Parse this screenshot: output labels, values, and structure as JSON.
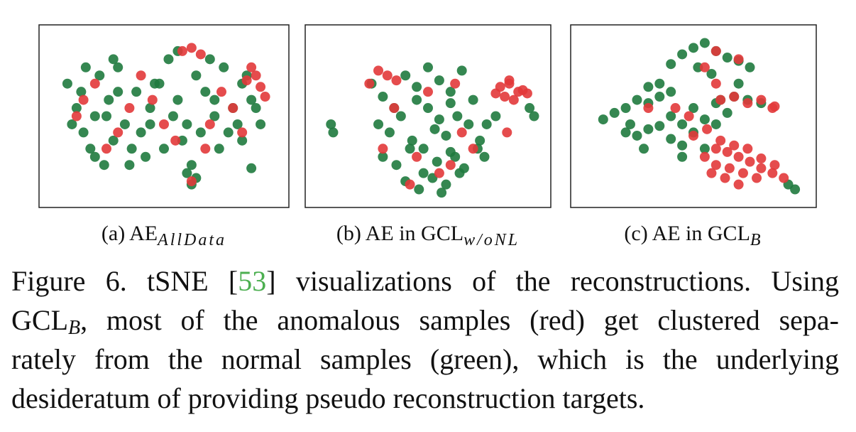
{
  "chart_data": [
    {
      "type": "scatter",
      "title": "(a) AE",
      "title_subscript": "AllData",
      "xlim": [
        0,
        100
      ],
      "ylim": [
        0,
        100
      ],
      "series": [
        {
          "color": "#1f7a3e",
          "x": [
            8,
            12,
            15,
            18,
            22,
            25,
            28,
            10,
            14,
            20,
            26,
            30,
            33,
            36,
            40,
            44,
            48,
            52,
            56,
            60,
            64,
            68,
            72,
            76,
            80,
            84,
            88,
            92,
            35,
            42,
            50,
            58,
            66,
            74,
            82,
            90,
            38,
            46,
            54,
            62,
            70,
            78,
            86,
            20,
            24,
            30,
            60,
            62,
            64,
            88,
            16,
            28,
            44,
            56,
            72,
            84
          ],
          "y": [
            70,
            55,
            40,
            30,
            75,
            50,
            35,
            45,
            65,
            25,
            60,
            80,
            45,
            30,
            40,
            55,
            70,
            85,
            60,
            45,
            75,
            65,
            50,
            80,
            55,
            70,
            60,
            45,
            20,
            25,
            30,
            35,
            40,
            30,
            45,
            55,
            65,
            70,
            50,
            20,
            85,
            40,
            75,
            50,
            20,
            65,
            15,
            8,
            12,
            18,
            80,
            85,
            45,
            90,
            60,
            35
          ]
        },
        {
          "color": "#e2383a",
          "x": [
            90,
            92,
            88,
            94,
            86,
            58,
            62,
            66,
            12,
            20,
            30,
            45,
            55,
            70,
            80,
            25,
            40,
            62,
            75,
            35,
            50,
            15,
            68,
            84
          ],
          "y": [
            75,
            68,
            80,
            62,
            72,
            90,
            92,
            88,
            50,
            70,
            40,
            60,
            35,
            45,
            55,
            30,
            75,
            10,
            65,
            55,
            45,
            60,
            30,
            40
          ]
        }
      ]
    },
    {
      "type": "scatter",
      "title": "(b) AE in GCL",
      "title_subscript": "w/oNL",
      "xlim": [
        0,
        100
      ],
      "ylim": [
        0,
        100
      ],
      "series": [
        {
          "color": "#1f7a3e",
          "x": [
            7,
            8,
            25,
            30,
            35,
            40,
            45,
            50,
            55,
            60,
            65,
            70,
            28,
            33,
            38,
            43,
            48,
            53,
            58,
            63,
            68,
            73,
            30,
            36,
            42,
            48,
            54,
            60,
            66,
            72,
            40,
            46,
            52,
            58,
            64,
            45,
            50,
            55,
            60,
            56,
            62,
            75,
            95,
            97,
            76,
            80
          ],
          "y": [
            45,
            40,
            70,
            62,
            55,
            75,
            68,
            80,
            72,
            65,
            78,
            60,
            45,
            40,
            50,
            35,
            30,
            42,
            38,
            50,
            45,
            35,
            25,
            20,
            30,
            15,
            22,
            28,
            18,
            30,
            10,
            5,
            12,
            8,
            15,
            60,
            55,
            48,
            58,
            3,
            25,
            25,
            55,
            50,
            45,
            50
          ]
        },
        {
          "color": "#e2383a",
          "x": [
            82,
            86,
            90,
            94,
            84,
            88,
            92,
            80,
            86,
            28,
            32,
            36,
            24,
            30,
            45,
            55,
            65,
            35,
            60,
            50,
            70,
            42,
            62,
            85
          ],
          "y": [
            68,
            70,
            65,
            64,
            62,
            60,
            66,
            64,
            72,
            78,
            75,
            72,
            70,
            30,
            25,
            15,
            40,
            55,
            20,
            65,
            30,
            8,
            70,
            40
          ]
        }
      ]
    },
    {
      "type": "scatter",
      "title": "(c) AE in GCL",
      "title_subscript": "B",
      "xlim": [
        0,
        100
      ],
      "ylim": [
        0,
        100
      ],
      "series": [
        {
          "color": "#1f7a3e",
          "x": [
            40,
            45,
            50,
            55,
            60,
            65,
            70,
            75,
            52,
            58,
            10,
            15,
            20,
            25,
            30,
            35,
            40,
            45,
            50,
            55,
            60,
            65,
            20,
            25,
            30,
            35,
            40,
            45,
            50,
            55,
            60,
            68,
            74,
            80,
            30,
            35,
            40,
            45,
            92,
            95,
            22,
            28,
            62,
            70
          ],
          "y": [
            82,
            88,
            92,
            95,
            90,
            86,
            84,
            80,
            80,
            76,
            48,
            52,
            55,
            60,
            58,
            62,
            50,
            45,
            55,
            48,
            58,
            52,
            40,
            38,
            42,
            44,
            36,
            32,
            40,
            30,
            45,
            62,
            60,
            58,
            68,
            70,
            65,
            25,
            8,
            5,
            45,
            30,
            60,
            70
          ]
        },
        {
          "color": "#e2383a",
          "x": [
            60,
            65,
            70,
            75,
            80,
            85,
            90,
            62,
            68,
            74,
            80,
            86,
            55,
            60,
            66,
            72,
            78,
            58,
            64,
            70,
            50,
            56,
            62,
            68,
            74,
            80,
            86,
            55,
            70,
            42,
            48,
            60,
            30,
            85,
            60
          ],
          "y": [
            30,
            28,
            25,
            22,
            18,
            15,
            12,
            35,
            32,
            30,
            24,
            20,
            25,
            20,
            18,
            15,
            12,
            15,
            12,
            8,
            38,
            42,
            60,
            62,
            58,
            60,
            56,
            80,
            85,
            55,
            50,
            90,
            55,
            55,
            70
          ]
        }
      ]
    }
  ],
  "figure_caption": {
    "lines": [
      [
        {
          "text": "Figure 6.  tSNE ["
        },
        {
          "text": "53",
          "link": true
        },
        {
          "text": "] visualizations of the reconstructions.  Using"
        }
      ],
      [
        {
          "text": "GCL"
        },
        {
          "text": "B",
          "subscript": true
        },
        {
          "text": ", most of the anomalous samples (red) get clustered sepa-"
        }
      ],
      [
        {
          "text": "rately from the normal samples (green), which is the underlying"
        }
      ],
      [
        {
          "text": "desideratum of providing pseudo reconstruction targets."
        }
      ]
    ]
  }
}
